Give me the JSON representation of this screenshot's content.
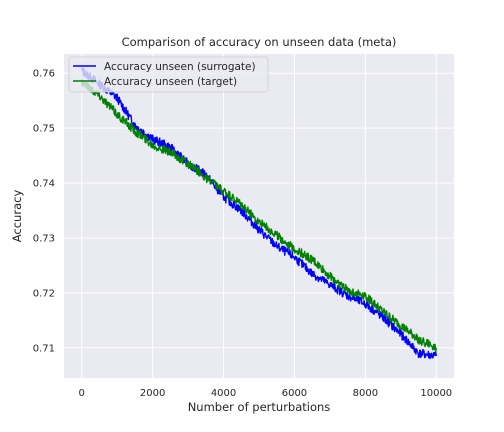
{
  "chart_data": {
    "type": "line",
    "title": "Comparison of accuracy on unseen data (meta)",
    "xlabel": "Number of perturbations",
    "ylabel": "Accuracy",
    "xlim": [
      -500,
      10500
    ],
    "ylim": [
      0.7045,
      0.7635
    ],
    "xticks": [
      0,
      2000,
      4000,
      6000,
      8000,
      10000
    ],
    "xtick_labels": [
      "0",
      "2000",
      "4000",
      "6000",
      "8000",
      "10000"
    ],
    "yticks": [
      0.71,
      0.72,
      0.73,
      0.74,
      0.75,
      0.76
    ],
    "ytick_labels": [
      "0.71",
      "0.72",
      "0.73",
      "0.74",
      "0.75",
      "0.76"
    ],
    "grid": true,
    "legend_position": "top-left",
    "series": [
      {
        "name": "Accuracy unseen (surrogate)",
        "color": "#0000ff",
        "x": [
          0,
          500,
          1000,
          1500,
          2000,
          2500,
          3000,
          3500,
          4000,
          4500,
          5000,
          5500,
          6000,
          6500,
          7000,
          7500,
          8000,
          8500,
          9000,
          9500,
          10000
        ],
        "y": [
          0.7605,
          0.758,
          0.7555,
          0.7505,
          0.748,
          0.7465,
          0.7435,
          0.7415,
          0.7375,
          0.735,
          0.7315,
          0.7285,
          0.7265,
          0.7235,
          0.7215,
          0.7195,
          0.718,
          0.7155,
          0.7125,
          0.709,
          0.7085
        ]
      },
      {
        "name": "Accuracy unseen (target)",
        "color": "#008000",
        "x": [
          0,
          500,
          1000,
          1500,
          2000,
          2500,
          3000,
          3500,
          4000,
          4500,
          5000,
          5500,
          6000,
          6500,
          7000,
          7500,
          8000,
          8500,
          9000,
          9500,
          10000
        ],
        "y": [
          0.7585,
          0.756,
          0.7525,
          0.7495,
          0.747,
          0.7455,
          0.7435,
          0.741,
          0.7385,
          0.736,
          0.733,
          0.7305,
          0.728,
          0.726,
          0.723,
          0.7205,
          0.7195,
          0.7165,
          0.714,
          0.7115,
          0.71
        ]
      }
    ]
  }
}
